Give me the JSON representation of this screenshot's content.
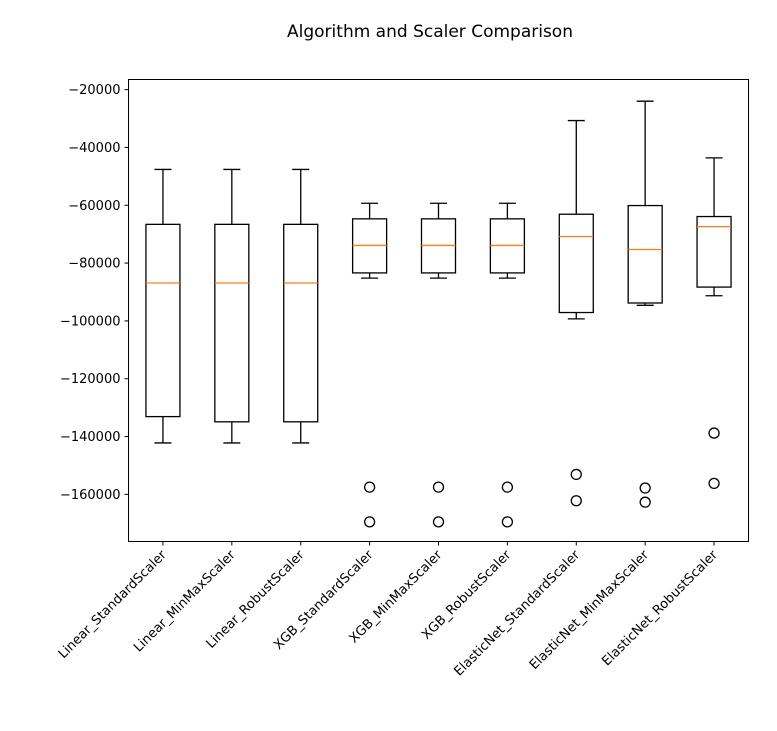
{
  "chart_data": {
    "type": "boxplot",
    "title": "Algorithm and Scaler Comparison",
    "xlabel": "",
    "ylabel": "",
    "ylim": [
      -176300,
      -16500
    ],
    "yticks": [
      -20000,
      -40000,
      -60000,
      -80000,
      -100000,
      -120000,
      -140000,
      -160000
    ],
    "ytick_labels": [
      "−20000",
      "−40000",
      "−60000",
      "−80000",
      "−100000",
      "−120000",
      "−140000",
      "−160000"
    ],
    "grid": false,
    "colors": {
      "box": "#000000",
      "median": "#ff7f0e"
    },
    "categories": [
      "Linear_StandardScaler",
      "Linear_MinMaxScaler",
      "Linear_RobustScaler",
      "XGB_StandardScaler",
      "XGB_MinMaxScaler",
      "XGB_RobustScaler",
      "ElasticNet_StandardScaler",
      "ElasticNet_MinMaxScaler",
      "ElasticNet_RobustScaler"
    ],
    "boxes": [
      {
        "whisker_high": -47600,
        "q3": -66600,
        "median": -86900,
        "q1": -133100,
        "whisker_low": -142200,
        "outliers": []
      },
      {
        "whisker_high": -47600,
        "q3": -66600,
        "median": -86900,
        "q1": -134900,
        "whisker_low": -142200,
        "outliers": []
      },
      {
        "whisker_high": -47600,
        "q3": -66600,
        "median": -86900,
        "q1": -134900,
        "whisker_low": -142200,
        "outliers": []
      },
      {
        "whisker_high": -59300,
        "q3": -64700,
        "median": -73900,
        "q1": -83400,
        "whisker_low": -85200,
        "outliers": [
          -157500,
          -169500
        ]
      },
      {
        "whisker_high": -59300,
        "q3": -64700,
        "median": -73900,
        "q1": -83400,
        "whisker_low": -85200,
        "outliers": [
          -157500,
          -169500
        ]
      },
      {
        "whisker_high": -59300,
        "q3": -64700,
        "median": -73900,
        "q1": -83400,
        "whisker_low": -85200,
        "outliers": [
          -157500,
          -169500
        ]
      },
      {
        "whisker_high": -30700,
        "q3": -63100,
        "median": -70800,
        "q1": -97100,
        "whisker_low": -99300,
        "outliers": [
          -153100,
          -162200
        ]
      },
      {
        "whisker_high": -24000,
        "q3": -60100,
        "median": -75300,
        "q1": -93800,
        "whisker_low": -94600,
        "outliers": [
          -157800,
          -162700
        ]
      },
      {
        "whisker_high": -43600,
        "q3": -63900,
        "median": -67400,
        "q1": -88300,
        "whisker_low": -91300,
        "outliers": [
          -138800,
          -156200
        ]
      }
    ]
  }
}
